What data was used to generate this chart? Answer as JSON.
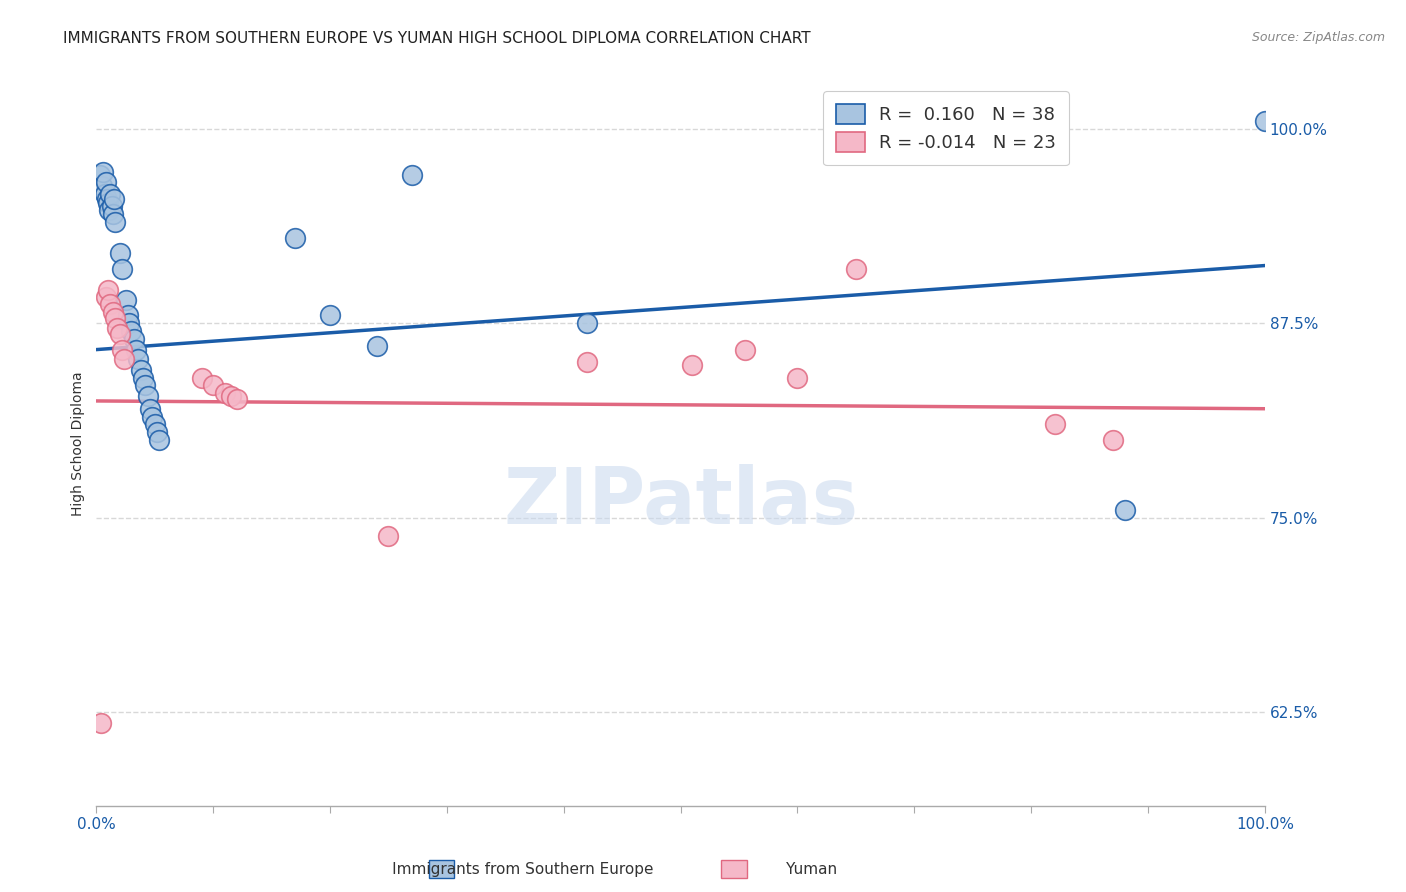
{
  "title": "IMMIGRANTS FROM SOUTHERN EUROPE VS YUMAN HIGH SCHOOL DIPLOMA CORRELATION CHART",
  "source": "Source: ZipAtlas.com",
  "ylabel": "High School Diploma",
  "blue_label": "Immigrants from Southern Europe",
  "pink_label": "Yuman",
  "blue_R": "0.160",
  "blue_N": "38",
  "pink_R": "-0.014",
  "pink_N": "23",
  "xmin": 0.0,
  "xmax": 1.0,
  "ymin": 0.565,
  "ymax": 1.03,
  "yticks": [
    0.625,
    0.75,
    0.875,
    1.0
  ],
  "ytick_labels": [
    "62.5%",
    "75.0%",
    "87.5%",
    "100.0%"
  ],
  "xticks": [
    0.0,
    0.1,
    0.2,
    0.3,
    0.4,
    0.5,
    0.6,
    0.7,
    0.8,
    0.9,
    1.0
  ],
  "xtick_labels_show": [
    "0.0%",
    "",
    "",
    "",
    "",
    "",
    "",
    "",
    "",
    "",
    "100.0%"
  ],
  "blue_color": "#a8c4e0",
  "blue_line_color": "#1a5ca8",
  "pink_color": "#f5b8c8",
  "pink_line_color": "#e06880",
  "watermark": "ZIPatlas",
  "blue_dots": [
    [
      0.003,
      0.97
    ],
    [
      0.005,
      0.963
    ],
    [
      0.006,
      0.972
    ],
    [
      0.007,
      0.958
    ],
    [
      0.008,
      0.966
    ],
    [
      0.009,
      0.955
    ],
    [
      0.01,
      0.952
    ],
    [
      0.011,
      0.948
    ],
    [
      0.012,
      0.958
    ],
    [
      0.013,
      0.95
    ],
    [
      0.014,
      0.945
    ],
    [
      0.015,
      0.955
    ],
    [
      0.016,
      0.94
    ],
    [
      0.02,
      0.92
    ],
    [
      0.022,
      0.91
    ],
    [
      0.025,
      0.89
    ],
    [
      0.027,
      0.88
    ],
    [
      0.028,
      0.875
    ],
    [
      0.03,
      0.87
    ],
    [
      0.032,
      0.865
    ],
    [
      0.034,
      0.858
    ],
    [
      0.036,
      0.852
    ],
    [
      0.038,
      0.845
    ],
    [
      0.04,
      0.84
    ],
    [
      0.042,
      0.835
    ],
    [
      0.044,
      0.828
    ],
    [
      0.046,
      0.82
    ],
    [
      0.048,
      0.815
    ],
    [
      0.05,
      0.81
    ],
    [
      0.052,
      0.805
    ],
    [
      0.054,
      0.8
    ],
    [
      0.17,
      0.93
    ],
    [
      0.2,
      0.88
    ],
    [
      0.24,
      0.86
    ],
    [
      0.42,
      0.875
    ],
    [
      0.88,
      0.755
    ],
    [
      0.27,
      0.97
    ],
    [
      1.0,
      1.005
    ]
  ],
  "pink_dots": [
    [
      0.004,
      0.618
    ],
    [
      0.008,
      0.892
    ],
    [
      0.01,
      0.896
    ],
    [
      0.012,
      0.887
    ],
    [
      0.014,
      0.882
    ],
    [
      0.016,
      0.878
    ],
    [
      0.018,
      0.872
    ],
    [
      0.02,
      0.868
    ],
    [
      0.022,
      0.858
    ],
    [
      0.024,
      0.852
    ],
    [
      0.09,
      0.84
    ],
    [
      0.1,
      0.835
    ],
    [
      0.11,
      0.83
    ],
    [
      0.115,
      0.828
    ],
    [
      0.12,
      0.826
    ],
    [
      0.25,
      0.738
    ],
    [
      0.42,
      0.85
    ],
    [
      0.51,
      0.848
    ],
    [
      0.555,
      0.858
    ],
    [
      0.6,
      0.84
    ],
    [
      0.65,
      0.91
    ],
    [
      0.82,
      0.81
    ],
    [
      0.87,
      0.8
    ]
  ],
  "blue_line_x": [
    0.0,
    1.0
  ],
  "blue_line_y": [
    0.858,
    0.912
  ],
  "pink_line_x": [
    0.0,
    1.0
  ],
  "pink_line_y": [
    0.825,
    0.82
  ],
  "background_color": "#ffffff",
  "grid_color": "#d8d8d8",
  "title_fontsize": 11,
  "axis_label_fontsize": 10,
  "tick_fontsize": 11,
  "legend_fontsize": 13,
  "dot_size": 200
}
